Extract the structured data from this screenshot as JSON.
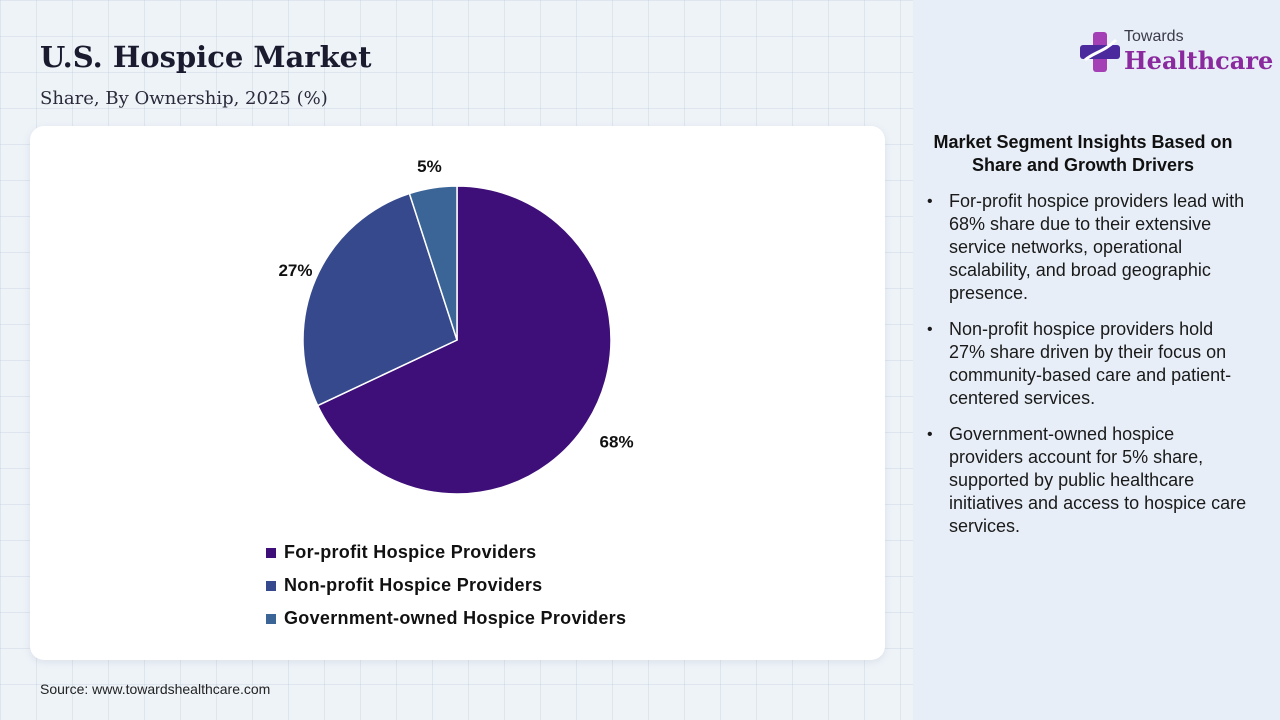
{
  "header": {
    "title": "U.S. Hospice Market",
    "subtitle": "Share, By Ownership, 2025 (%)"
  },
  "chart_data": {
    "type": "pie",
    "categories": [
      "For-profit Hospice Providers",
      "Non-profit Hospice Providers",
      "Government-owned Hospice Providers"
    ],
    "values": [
      68,
      27,
      5
    ],
    "labels": [
      "68%",
      "27%",
      "5%"
    ],
    "colors": [
      "#3e0f78",
      "#35498c",
      "#3b6597"
    ],
    "legend_placement": "bottom"
  },
  "source": "Source: www.towardshealthcare.com",
  "logo": {
    "top_text": "Towards",
    "main_text": "Healthcare",
    "icon": "medical-cross-icon"
  },
  "insights": {
    "title": "Market Segment Insights Based on Share and Growth Drivers",
    "items": [
      "For-profit hospice providers lead with 68% share due to their extensive service networks, operational scalability, and broad geographic presence.",
      "Non-profit hospice providers hold 27% share driven by their focus on community-based care and patient-centered services.",
      "Government-owned hospice providers account for 5% share, supported by public healthcare initiatives and access to hospice care services."
    ]
  }
}
